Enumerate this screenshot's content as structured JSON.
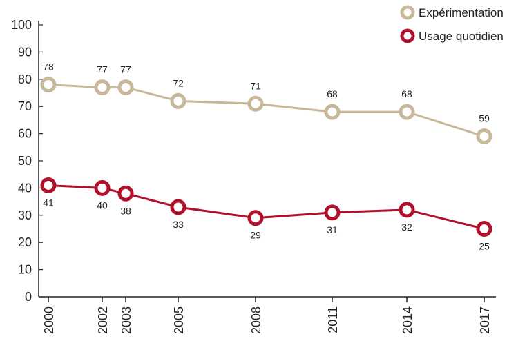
{
  "chart_data": {
    "type": "line",
    "x": [
      "2000",
      "2002",
      "2003",
      "2005",
      "2008",
      "2011",
      "2014",
      "2017"
    ],
    "series": [
      {
        "name": "Expérimentation",
        "values": [
          78,
          77,
          77,
          72,
          71,
          68,
          68,
          59
        ],
        "color": "#c8b89a"
      },
      {
        "name": "Usage quotidien",
        "values": [
          41,
          40,
          38,
          33,
          29,
          31,
          32,
          25
        ],
        "color": "#b0102a"
      }
    ],
    "ylim": [
      0,
      100
    ],
    "yticks": [
      "0",
      "10",
      "20",
      "30",
      "40",
      "50",
      "60",
      "70",
      "80",
      "90",
      "100"
    ],
    "grid": false,
    "legend": "top-right"
  }
}
